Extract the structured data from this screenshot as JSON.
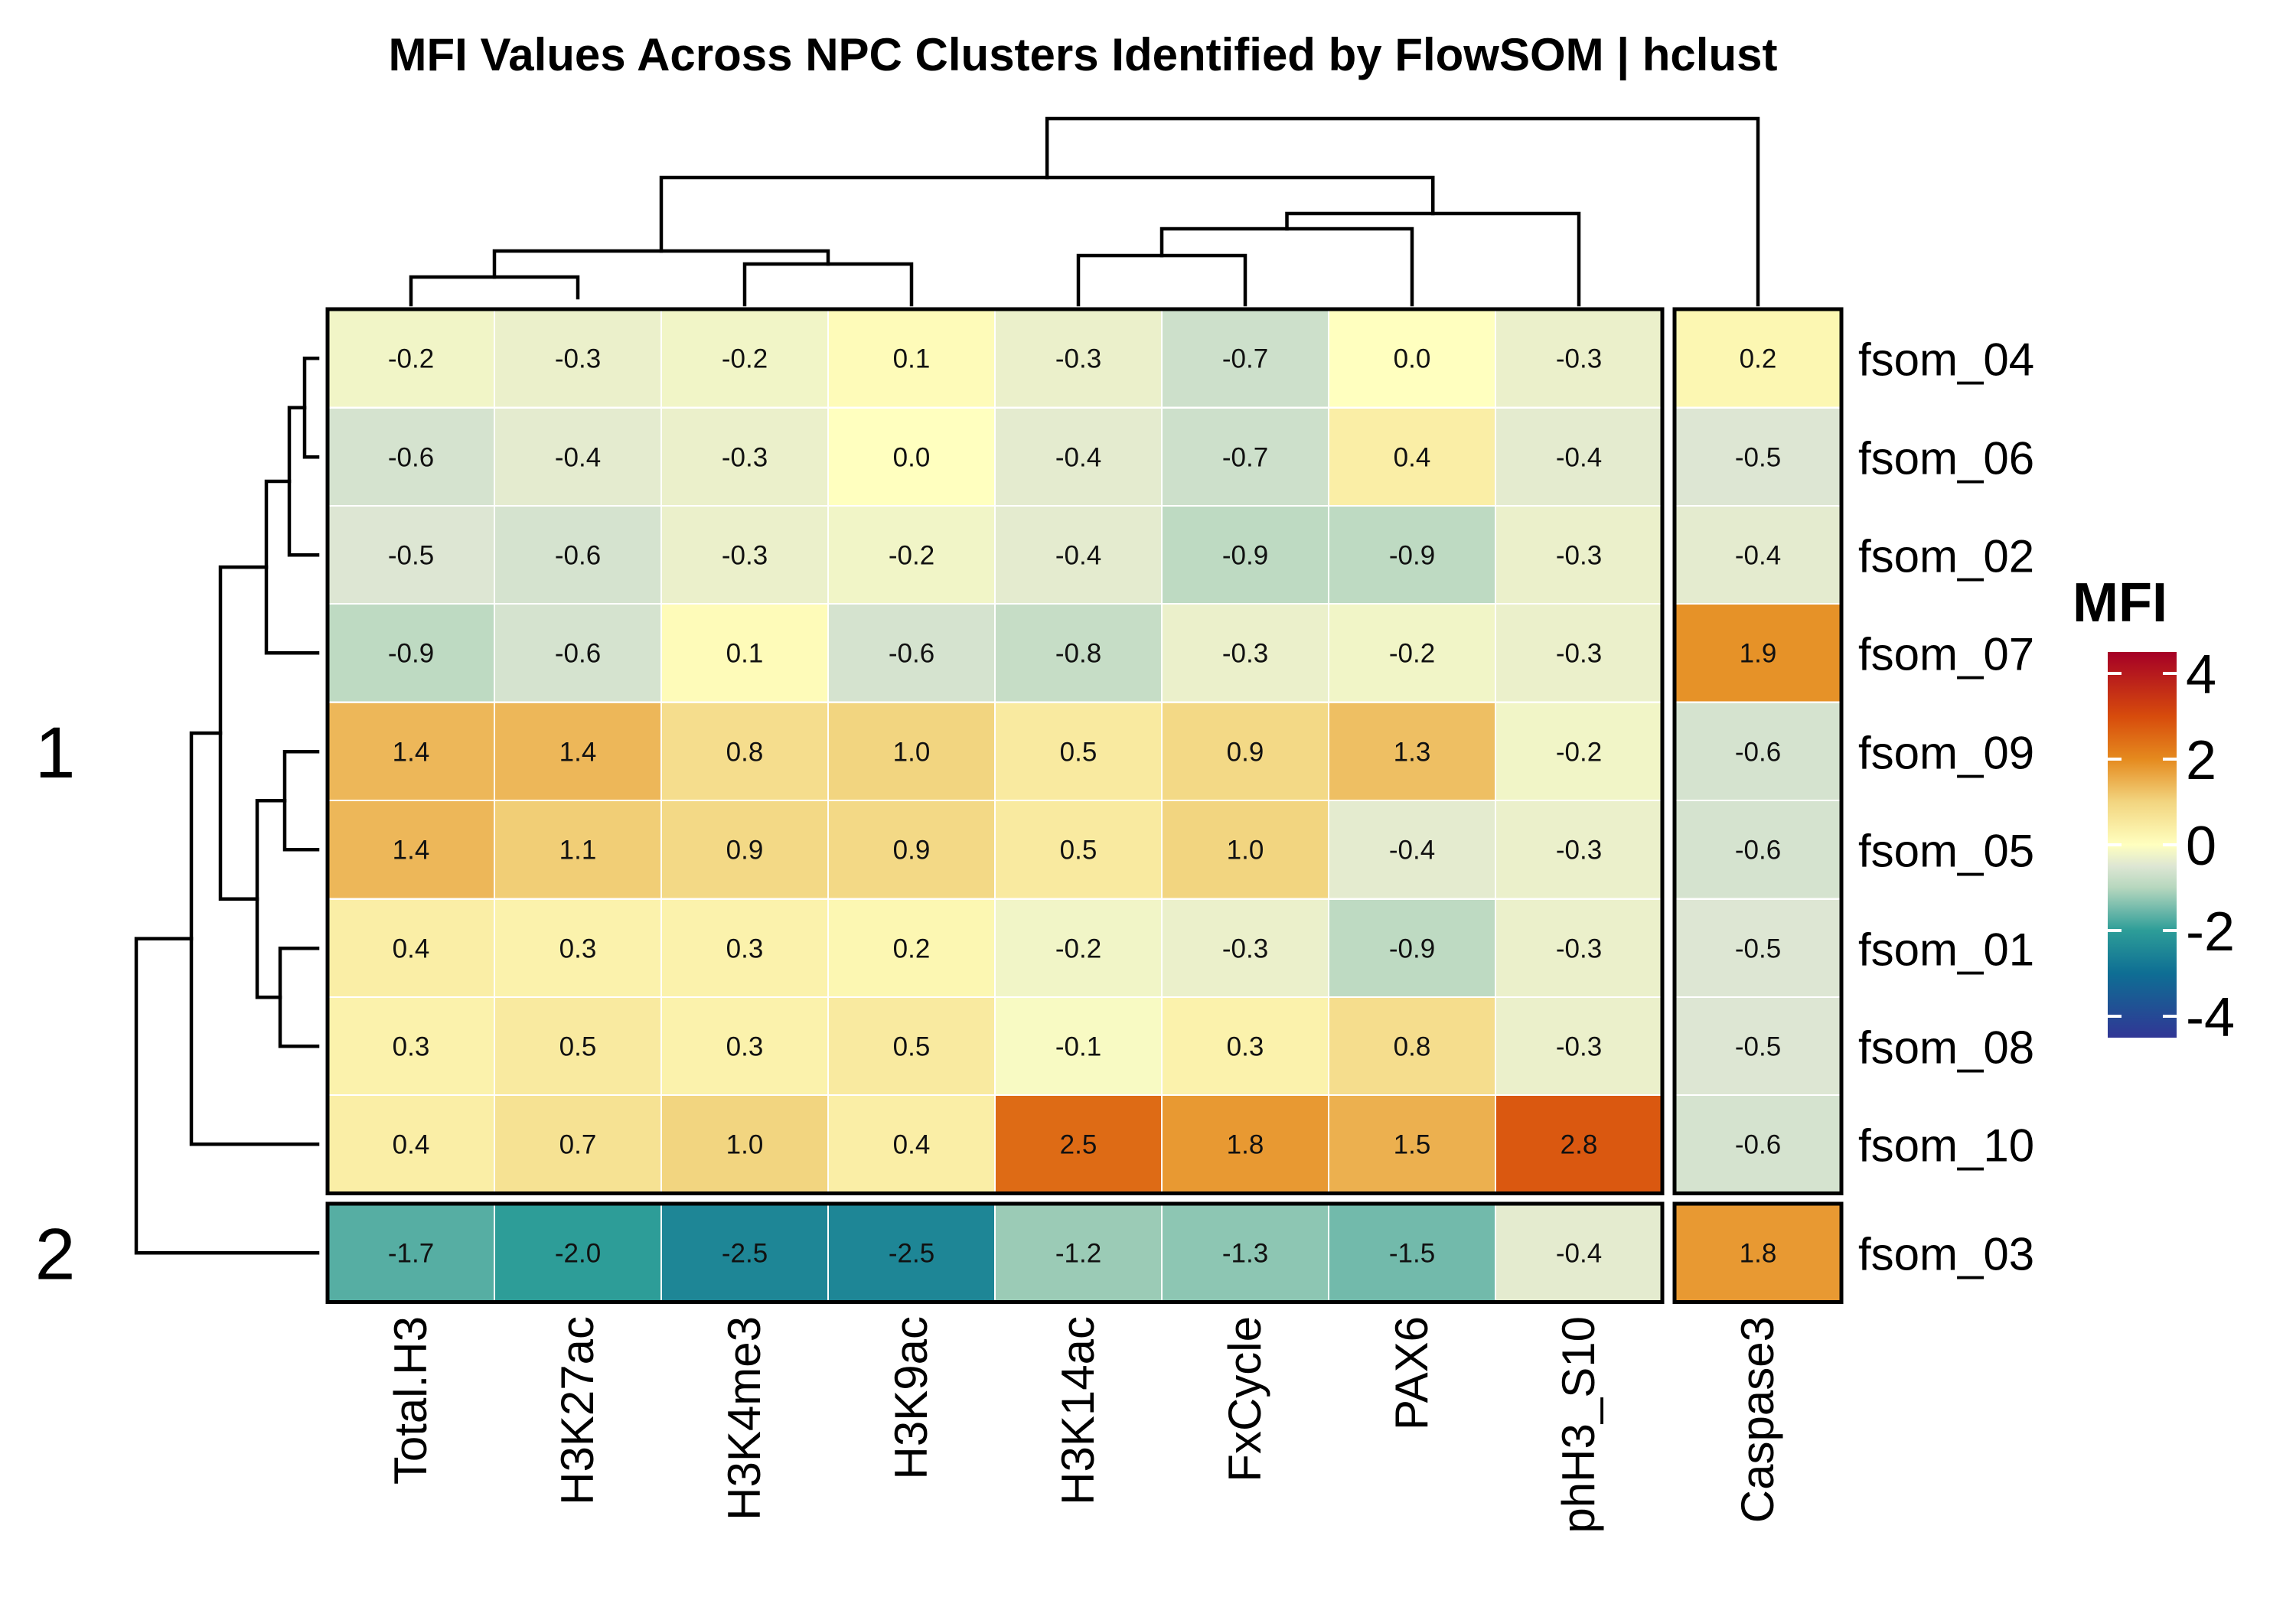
{
  "chart_data": {
    "type": "heatmap",
    "title": "MFI Values Across NPC Clusters Identified by FlowSOM | hclust",
    "columns": [
      "Total.H3",
      "H3K27ac",
      "H3K4me3",
      "H3K9ac",
      "H3K14ac",
      "FxCycle",
      "PAX6",
      "phH3_S10",
      "Caspase3"
    ],
    "column_split_after": "phH3_S10",
    "rows": [
      "fsom_04",
      "fsom_06",
      "fsom_02",
      "fsom_07",
      "fsom_09",
      "fsom_05",
      "fsom_01",
      "fsom_08",
      "fsom_10",
      "fsom_03"
    ],
    "row_groups": [
      {
        "label": "1",
        "rows": [
          "fsom_04",
          "fsom_06",
          "fsom_02",
          "fsom_07",
          "fsom_09",
          "fsom_05",
          "fsom_01",
          "fsom_08",
          "fsom_10"
        ]
      },
      {
        "label": "2",
        "rows": [
          "fsom_03"
        ]
      }
    ],
    "values": [
      [
        -0.2,
        -0.3,
        -0.2,
        0.1,
        -0.3,
        -0.7,
        0.0,
        -0.3,
        0.2
      ],
      [
        -0.6,
        -0.4,
        -0.3,
        0.0,
        -0.4,
        -0.7,
        0.4,
        -0.4,
        -0.5
      ],
      [
        -0.5,
        -0.6,
        -0.3,
        -0.2,
        -0.4,
        -0.9,
        -0.9,
        -0.3,
        -0.4
      ],
      [
        -0.9,
        -0.6,
        0.1,
        -0.6,
        -0.8,
        -0.3,
        -0.2,
        -0.3,
        1.9
      ],
      [
        1.4,
        1.4,
        0.8,
        1.0,
        0.5,
        0.9,
        1.3,
        -0.2,
        -0.6
      ],
      [
        1.4,
        1.1,
        0.9,
        0.9,
        0.5,
        1.0,
        -0.4,
        -0.3,
        -0.6
      ],
      [
        0.4,
        0.3,
        0.3,
        0.2,
        -0.2,
        -0.3,
        -0.9,
        -0.3,
        -0.5
      ],
      [
        0.3,
        0.5,
        0.3,
        0.5,
        -0.1,
        0.3,
        0.8,
        -0.3,
        -0.5
      ],
      [
        0.4,
        0.7,
        1.0,
        0.4,
        2.5,
        1.8,
        1.5,
        2.8,
        -0.6
      ],
      [
        -1.7,
        -2.0,
        -2.5,
        -2.5,
        -1.2,
        -1.3,
        -1.5,
        -0.4,
        1.8
      ]
    ],
    "legend": {
      "title": "MFI",
      "range": [
        -4.5,
        4.5
      ],
      "ticks": [
        4,
        2,
        0,
        -2,
        -4
      ],
      "tick_labels": [
        "4",
        "2",
        "0",
        "-2",
        "-4"
      ]
    },
    "color_scale": [
      {
        "value": -4.5,
        "color": "#313695"
      },
      {
        "value": -3.0,
        "color": "#0e6e94"
      },
      {
        "value": -2.0,
        "color": "#2d9d98"
      },
      {
        "value": -1.0,
        "color": "#b6d7be"
      },
      {
        "value": -0.5,
        "color": "#dde6d3"
      },
      {
        "value": 0.0,
        "color": "#ffffbf"
      },
      {
        "value": 1.0,
        "color": "#f2d580"
      },
      {
        "value": 2.0,
        "color": "#e58a1e"
      },
      {
        "value": 3.0,
        "color": "#d74b0c"
      },
      {
        "value": 4.5,
        "color": "#a50026"
      }
    ]
  }
}
